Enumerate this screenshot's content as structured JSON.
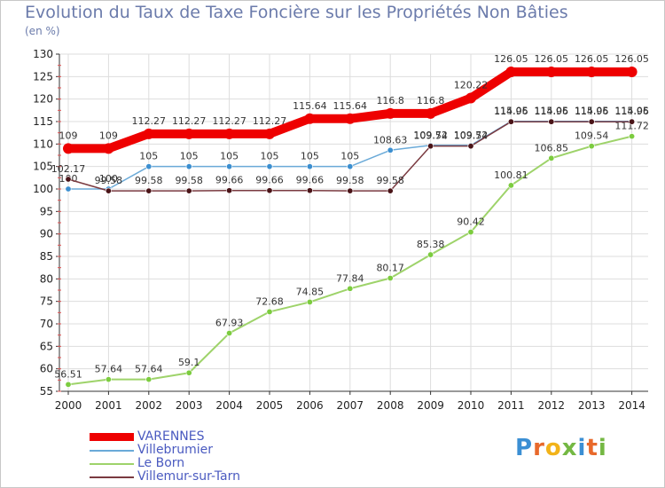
{
  "title": "Evolution du Taux de Taxe Foncière sur les Propriétés Non Bâties",
  "unit": "(en %)",
  "brand": "Proxiti",
  "chart_data": {
    "type": "line",
    "title": "Evolution du Taux de Taxe Foncière sur les Propriétés Non Bâties",
    "ylabel": "(en %)",
    "xlabel": "",
    "ylim": [
      55,
      130
    ],
    "yticks": [
      55,
      60,
      65,
      70,
      75,
      80,
      85,
      90,
      95,
      100,
      105,
      110,
      115,
      120,
      125,
      130
    ],
    "x": [
      "2000",
      "2001",
      "2002",
      "2003",
      "2004",
      "2005",
      "2006",
      "2007",
      "2008",
      "2009",
      "2010",
      "2011",
      "2012",
      "2013",
      "2014"
    ],
    "series": [
      {
        "name": "Le Born",
        "color": "#9ed36a",
        "marker": "#7ccc3f",
        "width": 2,
        "values": [
          56.51,
          57.64,
          57.64,
          59.1,
          67.93,
          72.68,
          74.85,
          77.84,
          80.17,
          85.38,
          90.42,
          100.81,
          106.85,
          109.54,
          111.72
        ],
        "labels": [
          "56.51",
          "57.64",
          "57.64",
          "59.1",
          "67.93",
          "72.68",
          "74.85",
          "77.84",
          "80.17",
          "85.38",
          "90.42",
          "100.81",
          "106.85",
          "109.54",
          "111.72"
        ]
      },
      {
        "name": "Villebrumier",
        "color": "#6aaad8",
        "marker": "#3c8fd0",
        "width": 1.5,
        "values": [
          100,
          100,
          105,
          105,
          105,
          105,
          105,
          105,
          108.63,
          109.72,
          109.72,
          115.05,
          115.05,
          115.05,
          115.05
        ],
        "labels": [
          "100",
          "100",
          "105",
          "105",
          "105",
          "105",
          "105",
          "105",
          "108.63",
          "109.72",
          "109.72",
          "115.05",
          "115.05",
          "115.05",
          "115.05"
        ]
      },
      {
        "name": "Villemur-sur-Tarn",
        "color": "#7a3a40",
        "marker": "#4a1418",
        "width": 1.5,
        "values": [
          102.17,
          99.58,
          99.58,
          99.58,
          99.66,
          99.66,
          99.66,
          99.58,
          99.58,
          109.54,
          109.54,
          114.96,
          114.96,
          114.96,
          114.96
        ],
        "labels": [
          "102.17",
          "99.58",
          "99.58",
          "99.58",
          "99.66",
          "99.66",
          "99.66",
          "99.58",
          "99.58",
          "109.54",
          "109.54",
          "114.96",
          "114.96",
          "114.96",
          "114.96"
        ]
      },
      {
        "name": "VARENNES",
        "color": "#ee0000",
        "marker": "#ee0000",
        "width": 10,
        "values": [
          109,
          109,
          112.27,
          112.27,
          112.27,
          112.27,
          115.64,
          115.64,
          116.8,
          116.8,
          120.22,
          126.05,
          126.05,
          126.05,
          126.05
        ],
        "labels": [
          "109",
          "109",
          "112.27",
          "112.27",
          "112.27",
          "112.27",
          "115.64",
          "115.64",
          "116.8",
          "116.8",
          "120.22",
          "126.05",
          "126.05",
          "126.05",
          "126.05"
        ]
      }
    ],
    "legend": [
      {
        "name": "VARENNES",
        "color": "#ee0000",
        "text_color": "#4a5ac0"
      },
      {
        "name": "Villebrumier",
        "color": "#6aaad8",
        "text_color": "#4a5ac0"
      },
      {
        "name": "Le Born",
        "color": "#9ed36a",
        "text_color": "#4a5ac0"
      },
      {
        "name": "Villemur-sur-Tarn",
        "color": "#7a3a40",
        "text_color": "#4a5ac0"
      }
    ]
  }
}
